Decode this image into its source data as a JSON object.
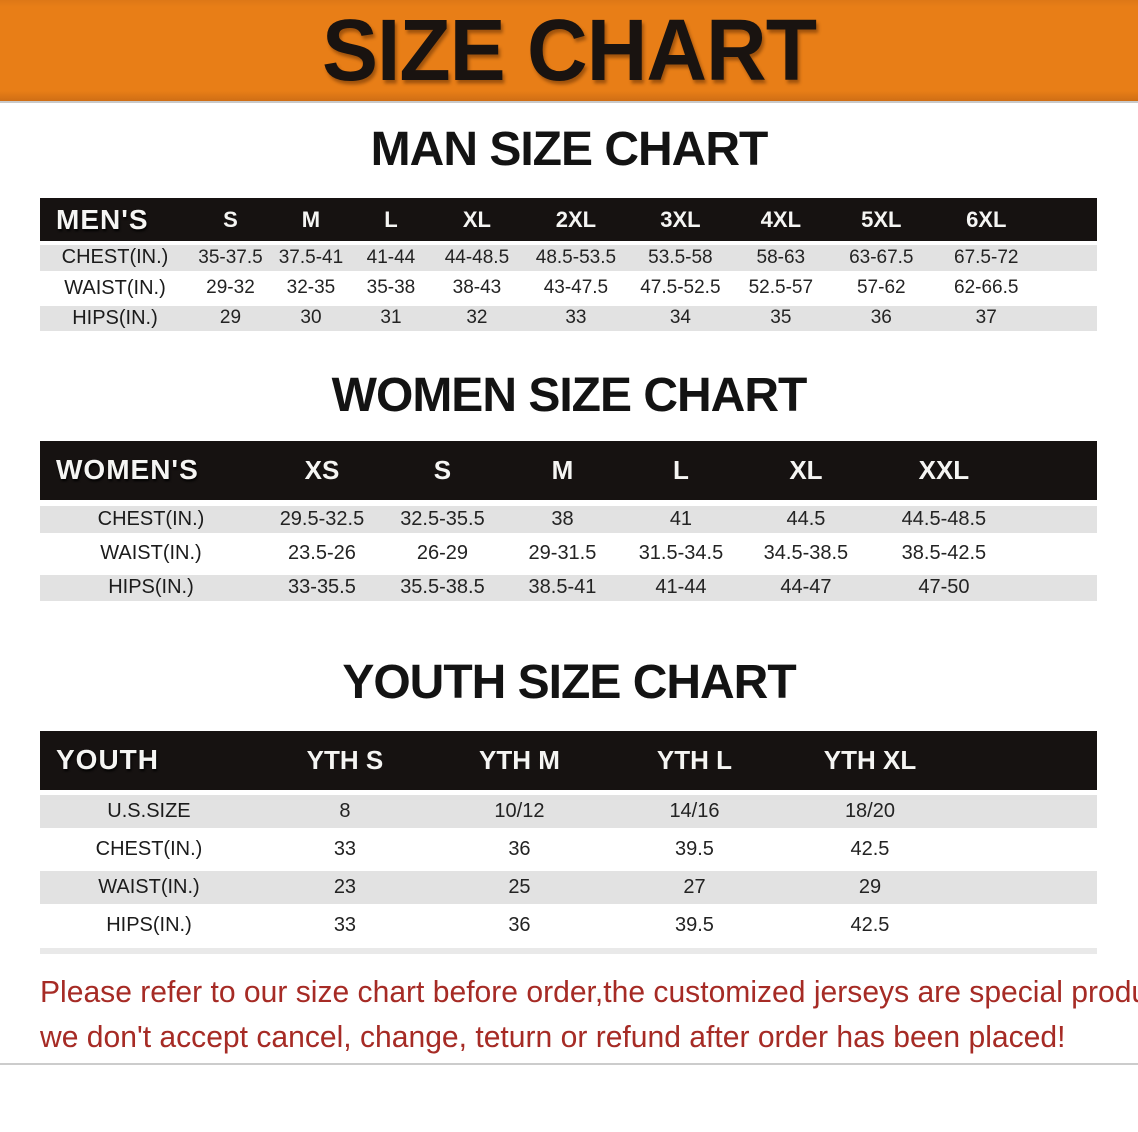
{
  "banner": {
    "title": "SIZE CHART"
  },
  "colors": {
    "banner_orange": "#E87E17",
    "table_header_black": "#161211",
    "row_gray": "#E2E2E2",
    "disclaimer_red": "#A62B25"
  },
  "chart_data": [
    {
      "type": "table",
      "title": "MAN SIZE CHART",
      "columns": [
        "MEN'S",
        "S",
        "M",
        "L",
        "XL",
        "2XL",
        "3XL",
        "4XL",
        "5XL",
        "6XL"
      ],
      "rows": [
        [
          "CHEST(IN.)",
          "35-37.5",
          "37.5-41",
          "41-44",
          "44-48.5",
          "48.5-53.5",
          "53.5-58",
          "58-63",
          "63-67.5",
          "67.5-72"
        ],
        [
          "WAIST(IN.)",
          "29-32",
          "32-35",
          "35-38",
          "38-43",
          "43-47.5",
          "47.5-52.5",
          "52.5-57",
          "57-62",
          "62-66.5"
        ],
        [
          "HIPS(IN.)",
          "29",
          "30",
          "31",
          "32",
          "33",
          "34",
          "35",
          "36",
          "37"
        ]
      ]
    },
    {
      "type": "table",
      "title": "WOMEN SIZE CHART",
      "columns": [
        "WOMEN'S",
        "XS",
        "S",
        "M",
        "L",
        "XL",
        "XXL"
      ],
      "rows": [
        [
          "CHEST(IN.)",
          "29.5-32.5",
          "32.5-35.5",
          "38",
          "41",
          "44.5",
          "44.5-48.5"
        ],
        [
          "WAIST(IN.)",
          "23.5-26",
          "26-29",
          "29-31.5",
          "31.5-34.5",
          "34.5-38.5",
          "38.5-42.5"
        ],
        [
          "HIPS(IN.)",
          "33-35.5",
          "35.5-38.5",
          "38.5-41",
          "41-44",
          "44-47",
          "47-50"
        ]
      ]
    },
    {
      "type": "table",
      "title": "YOUTH SIZE CHART",
      "columns": [
        "YOUTH",
        "YTH S",
        "YTH M",
        "YTH L",
        "YTH XL"
      ],
      "rows": [
        [
          "U.S.SIZE",
          "8",
          "10/12",
          "14/16",
          "18/20"
        ],
        [
          "CHEST(IN.)",
          "33",
          "36",
          "39.5",
          "42.5"
        ],
        [
          "WAIST(IN.)",
          "23",
          "25",
          "27",
          "29"
        ],
        [
          "HIPS(IN.)",
          "33",
          "36",
          "39.5",
          "42.5"
        ]
      ]
    }
  ],
  "disclaimer": {
    "lines": [
      "Please refer to our size chart before order,the customized jerseys are special products,",
      "we don't accept cancel, change, teturn or refund after order has been placed!"
    ]
  }
}
